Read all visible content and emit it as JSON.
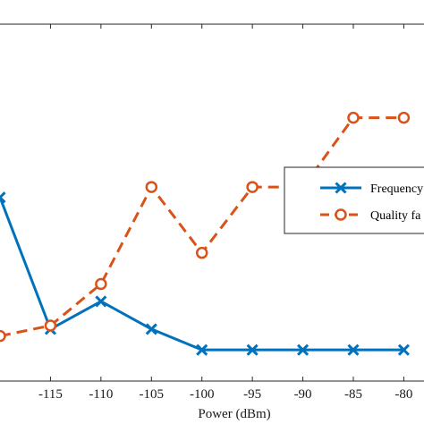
{
  "chart_data": {
    "type": "line",
    "xlabel": "Power (dBm)",
    "x": [
      -120,
      -115,
      -110,
      -105,
      -100,
      -95,
      -90,
      -85,
      -80
    ],
    "xlim": [
      -120,
      -78
    ],
    "xticks": [
      -115,
      -110,
      -105,
      -100,
      -95,
      -90,
      -85,
      -80
    ],
    "xtick_labels": [
      "-115",
      "-110",
      "-105",
      "-100",
      "-95",
      "-90",
      "-85",
      "-80"
    ],
    "ylim": [
      -0.3,
      10
    ],
    "grid": false,
    "legend_position": "right",
    "series": [
      {
        "name": "Frequency",
        "color": "#0072BD",
        "marker": "x",
        "line_style": "solid",
        "values": [
          5.0,
          1.2,
          2.0,
          1.2,
          0.6,
          0.6,
          0.6,
          0.6,
          0.6
        ]
      },
      {
        "name": "Quality fa",
        "color": "#D95319",
        "marker": "circle",
        "line_style": "dashed",
        "values": [
          1.0,
          1.3,
          2.5,
          5.3,
          3.4,
          5.3,
          5.3,
          7.3,
          7.3
        ]
      }
    ]
  }
}
